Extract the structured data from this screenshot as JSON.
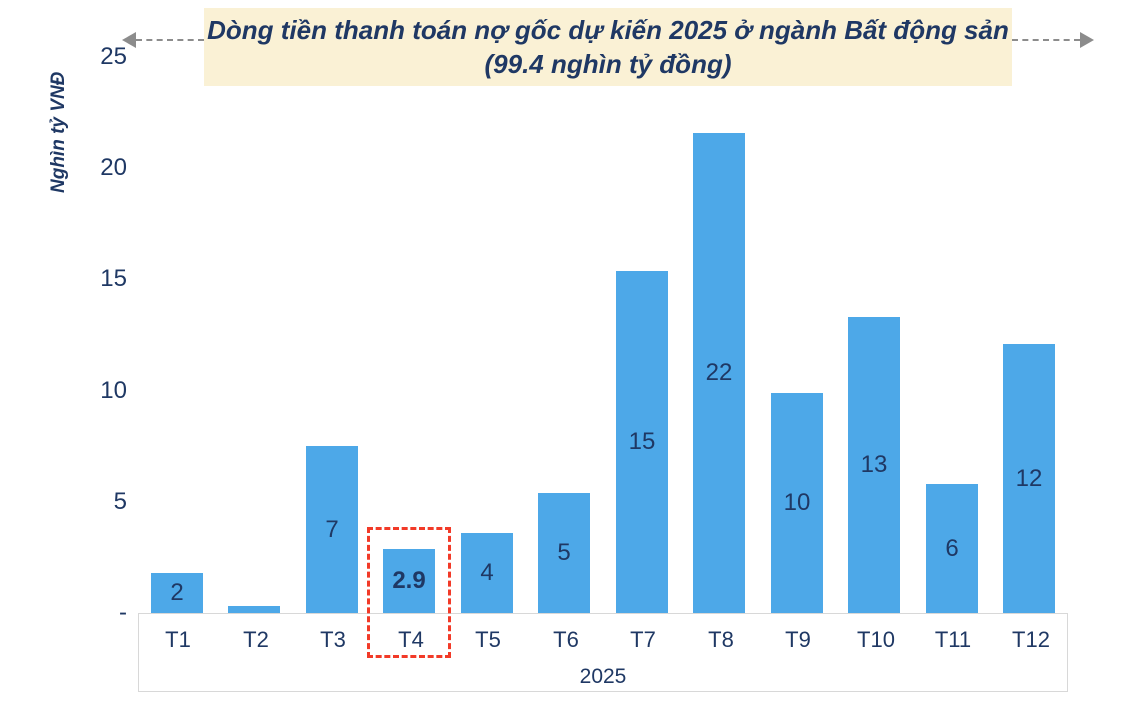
{
  "banner": {
    "line1": "Dòng tiền thanh toán nợ gốc dự kiến 2025 ở ngành Bất động sản",
    "line2": "(99.4 nghìn tỷ đồng)"
  },
  "chart_data": {
    "type": "bar",
    "title": "Dòng tiền thanh toán nợ gốc dự kiến 2025 ở ngành Bất động sản (99.4 nghìn tỷ đồng)",
    "y_axis_title": "Nghìn tỷ VNĐ",
    "x_group_label": "2025",
    "categories": [
      "T1",
      "T2",
      "T3",
      "T4",
      "T5",
      "T6",
      "T7",
      "T8",
      "T9",
      "T10",
      "T11",
      "T12"
    ],
    "values": [
      1.8,
      0.3,
      7.5,
      2.9,
      3.6,
      5.4,
      15.4,
      21.6,
      9.9,
      13.3,
      5.8,
      12.1
    ],
    "data_labels": [
      "2",
      "",
      "7",
      "2.9",
      "4",
      "5",
      "15",
      "22",
      "10",
      "13",
      "6",
      "12"
    ],
    "bold_label_category": "T4",
    "highlight_category": "T4",
    "ylim": [
      0,
      25
    ],
    "y_ticks": [
      {
        "label": "25",
        "value": 25
      },
      {
        "label": "20",
        "value": 20
      },
      {
        "label": "15",
        "value": 15
      },
      {
        "label": "10",
        "value": 10
      },
      {
        "label": "5",
        "value": 5
      },
      {
        "label": "-",
        "value": 0
      }
    ],
    "grid": false,
    "legend": "none"
  },
  "colors": {
    "bar": "#4da8e8",
    "text_navy": "#1f3864",
    "title_background": "#faf1d5",
    "axis_border": "#d8d8d8",
    "arrow_gray": "#8c8c8c",
    "highlight_red": "#f23a28"
  }
}
